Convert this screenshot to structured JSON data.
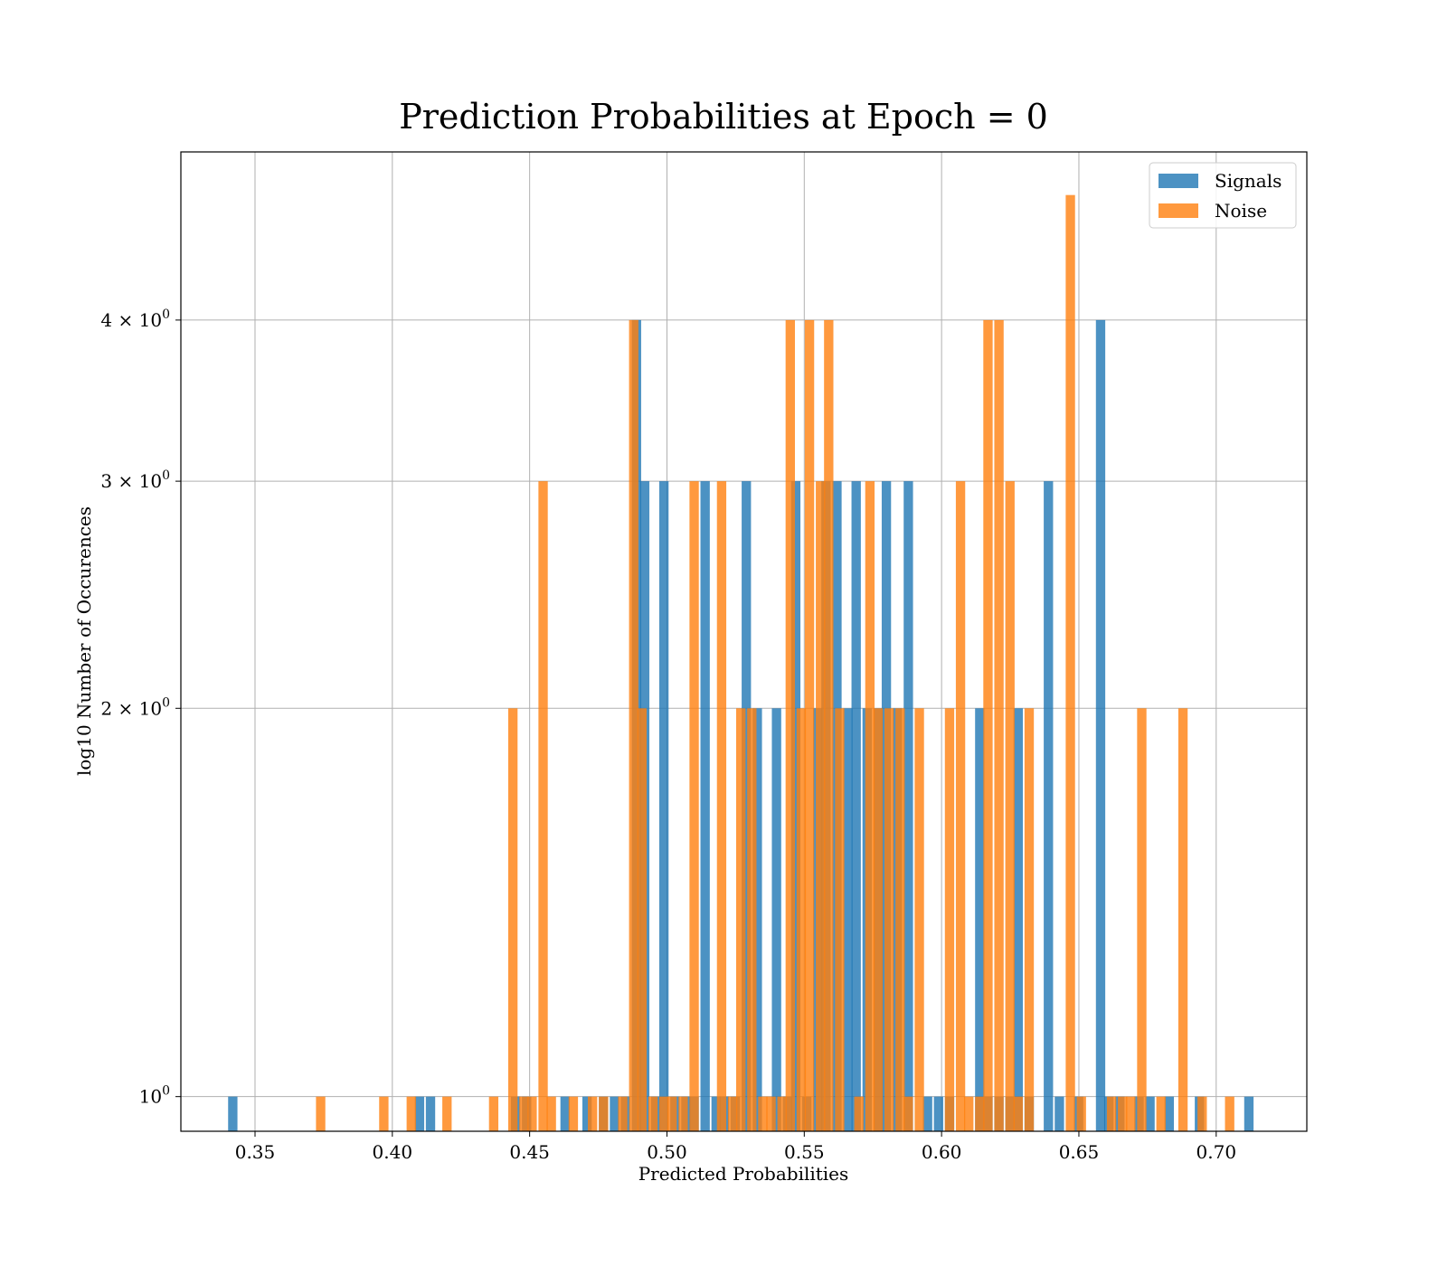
{
  "chart_data": {
    "type": "bar",
    "title": "Prediction Probabilities at Epoch = 0",
    "xlabel": "Predicted Probabilities",
    "ylabel": "log10 Number of Occurences",
    "xlim": [
      0.323,
      0.733
    ],
    "ylim": [
      0.94,
      5.4
    ],
    "yscale": "log",
    "grid": true,
    "legend_position": "top-right",
    "bin_width": 0.0036,
    "x_ticks": [
      "0.35",
      "0.40",
      "0.45",
      "0.50",
      "0.55",
      "0.60",
      "0.65",
      "0.70"
    ],
    "y_ticks": [
      {
        "value": 1,
        "base": "10",
        "exp": "0"
      },
      {
        "value": 2,
        "base": "2 × 10",
        "exp": "0"
      },
      {
        "value": 3,
        "base": "3 × 10",
        "exp": "0"
      },
      {
        "value": 4,
        "base": "4 × 10",
        "exp": "0"
      }
    ],
    "series": [
      {
        "name": "Signals",
        "color": "#1f77b4",
        "opacity": 0.8,
        "x": [
          0.342,
          0.41,
          0.414,
          0.445,
          0.449,
          0.463,
          0.471,
          0.477,
          0.481,
          0.485,
          0.489,
          0.492,
          0.496,
          0.499,
          0.503,
          0.507,
          0.51,
          0.514,
          0.518,
          0.521,
          0.525,
          0.529,
          0.533,
          0.54,
          0.544,
          0.547,
          0.551,
          0.555,
          0.558,
          0.562,
          0.566,
          0.569,
          0.573,
          0.577,
          0.58,
          0.584,
          0.588,
          0.595,
          0.599,
          0.603,
          0.614,
          0.617,
          0.621,
          0.625,
          0.628,
          0.632,
          0.639,
          0.643,
          0.65,
          0.658,
          0.661,
          0.665,
          0.672,
          0.676,
          0.683,
          0.694,
          0.712
        ],
        "values": [
          1,
          1,
          1,
          1,
          1,
          1,
          1,
          1,
          1,
          1,
          4,
          3,
          1,
          3,
          1,
          1,
          1,
          3,
          1,
          1,
          1,
          3,
          2,
          2,
          1,
          3,
          1,
          2,
          3,
          3,
          2,
          3,
          2,
          2,
          3,
          2,
          3,
          1,
          1,
          1,
          2,
          1,
          1,
          1,
          2,
          1,
          3,
          1,
          1,
          4,
          1,
          1,
          1,
          1,
          1,
          1,
          1
        ]
      },
      {
        "name": "Noise",
        "color": "#ff7f0e",
        "opacity": 0.8,
        "x": [
          0.374,
          0.397,
          0.407,
          0.42,
          0.437,
          0.444,
          0.448,
          0.451,
          0.455,
          0.458,
          0.466,
          0.473,
          0.477,
          0.484,
          0.488,
          0.491,
          0.495,
          0.499,
          0.502,
          0.506,
          0.51,
          0.52,
          0.524,
          0.527,
          0.531,
          0.535,
          0.538,
          0.542,
          0.545,
          0.549,
          0.552,
          0.556,
          0.559,
          0.563,
          0.57,
          0.574,
          0.577,
          0.581,
          0.585,
          0.588,
          0.592,
          0.603,
          0.607,
          0.61,
          0.614,
          0.617,
          0.621,
          0.625,
          0.628,
          0.632,
          0.647,
          0.651,
          0.662,
          0.666,
          0.669,
          0.673,
          0.68,
          0.688,
          0.695,
          0.705
        ],
        "values": [
          1,
          1,
          1,
          1,
          1,
          2,
          1,
          1,
          3,
          1,
          1,
          1,
          1,
          1,
          4,
          2,
          1,
          1,
          1,
          1,
          3,
          3,
          1,
          2,
          2,
          1,
          1,
          1,
          4,
          2,
          4,
          3,
          4,
          2,
          1,
          3,
          2,
          2,
          2,
          1,
          2,
          2,
          3,
          1,
          1,
          4,
          4,
          3,
          1,
          2,
          5,
          1,
          1,
          1,
          1,
          2,
          1,
          2,
          1,
          1
        ]
      }
    ]
  }
}
